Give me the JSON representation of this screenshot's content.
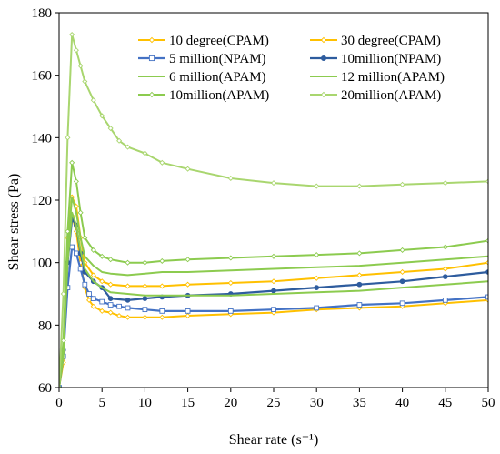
{
  "chart_data": {
    "type": "line",
    "xlabel": "Shear rate (s⁻¹)",
    "ylabel": "Shear stress (Pa)",
    "xlim": [
      0,
      50
    ],
    "ylim": [
      60,
      180
    ],
    "xticks": [
      "0",
      "5",
      "10",
      "15",
      "20",
      "25",
      "30",
      "35",
      "40",
      "45",
      "50"
    ],
    "yticks": [
      "60",
      "80",
      "100",
      "120",
      "140",
      "160",
      "180"
    ],
    "grid": false,
    "legend_position": "top-right",
    "series": [
      {
        "name": "10 degree(CPAM)",
        "color": "#FFC000",
        "marker": "diamond",
        "x": [
          0,
          0.5,
          1,
          1.5,
          2,
          2.5,
          3,
          3.5,
          4,
          5,
          6,
          7,
          8,
          10,
          12,
          15,
          20,
          25,
          30,
          35,
          40,
          45,
          50
        ],
        "y": [
          60,
          68,
          100,
          115,
          110,
          100,
          92,
          88,
          86,
          84.5,
          84,
          83,
          82.5,
          82.5,
          82.5,
          83,
          83.5,
          84,
          85,
          85.5,
          86,
          87,
          88
        ]
      },
      {
        "name": "30 degree(CPAM)",
        "color": "#FFC000",
        "marker": "diamond",
        "x": [
          0,
          0.5,
          1,
          1.5,
          2,
          2.5,
          3,
          4,
          5,
          6,
          8,
          10,
          12,
          15,
          20,
          25,
          30,
          35,
          40,
          45,
          50
        ],
        "y": [
          60,
          70,
          108,
          121,
          118,
          108,
          100,
          96,
          94,
          93,
          92.5,
          92.5,
          92.5,
          93,
          93.5,
          94,
          95,
          96,
          97,
          98,
          100
        ]
      },
      {
        "name": "5 million(NPAM)",
        "color": "#4472C4",
        "marker": "square",
        "x": [
          0,
          0.5,
          1,
          1.5,
          2,
          2.5,
          3,
          3.5,
          4,
          5,
          6,
          7,
          8,
          10,
          12,
          15,
          20,
          25,
          30,
          35,
          40,
          45,
          50
        ],
        "y": [
          60,
          70,
          92,
          105,
          103,
          98,
          93,
          90,
          88.5,
          87.5,
          86.5,
          86,
          85.5,
          85,
          84.5,
          84.5,
          84.5,
          85,
          85.5,
          86.5,
          87,
          88,
          89
        ]
      },
      {
        "name": "10million(NPAM)",
        "color": "#2E5C9E",
        "marker": "circle",
        "x": [
          0,
          0.5,
          1,
          1.5,
          2,
          2.5,
          3,
          4,
          5,
          6,
          8,
          10,
          12,
          15,
          20,
          25,
          30,
          35,
          40,
          45,
          50
        ],
        "y": [
          60,
          72,
          100,
          114,
          112,
          103,
          97,
          94,
          92,
          88.5,
          88,
          88.5,
          89,
          89.5,
          90,
          91,
          92,
          93,
          94,
          95.5,
          97
        ]
      },
      {
        "name": "6 million(APAM)",
        "color": "#8CCB4F",
        "marker": "none",
        "x": [
          0,
          0.5,
          1,
          1.5,
          2,
          2.5,
          3,
          4,
          5,
          6,
          8,
          10,
          12,
          15,
          20,
          25,
          30,
          35,
          40,
          45,
          50
        ],
        "y": [
          60,
          70,
          100,
          116,
          112,
          104,
          98,
          94,
          92,
          90.5,
          90,
          89.5,
          89.5,
          89.5,
          89.5,
          90,
          90.5,
          91,
          92,
          93,
          94
        ]
      },
      {
        "name": "12 million(APAM)",
        "color": "#8CCB4F",
        "marker": "none",
        "x": [
          0,
          0.5,
          1,
          1.5,
          2,
          2.5,
          3,
          4,
          5,
          6,
          8,
          10,
          12,
          15,
          20,
          25,
          30,
          35,
          40,
          45,
          50
        ],
        "y": [
          60,
          72,
          104,
          121,
          116,
          108,
          102,
          99,
          97,
          96.5,
          96,
          96.5,
          97,
          97,
          97.5,
          98,
          98.5,
          99,
          100,
          101,
          102
        ]
      },
      {
        "name": "10million(APAM)",
        "color": "#8CCB4F",
        "marker": "diamond",
        "x": [
          0,
          0.5,
          1,
          1.5,
          2,
          2.5,
          3,
          4,
          5,
          6,
          8,
          10,
          12,
          15,
          20,
          25,
          30,
          35,
          40,
          45,
          50
        ],
        "y": [
          60,
          75,
          110,
          132,
          126,
          116,
          108,
          104,
          102,
          101,
          100,
          100,
          100.5,
          101,
          101.5,
          102,
          102.5,
          103,
          104,
          105,
          107
        ]
      },
      {
        "name": "20million(APAM)",
        "color": "#A9D66F",
        "marker": "diamond",
        "x": [
          0,
          0.5,
          1,
          1.5,
          2,
          2.5,
          3,
          4,
          5,
          6,
          7,
          8,
          10,
          12,
          15,
          20,
          25,
          30,
          35,
          40,
          45,
          50
        ],
        "y": [
          60,
          90,
          140,
          173,
          168,
          163,
          158,
          152,
          147,
          143,
          139,
          137,
          135,
          132,
          130,
          127,
          125.5,
          124.5,
          124.5,
          125,
          125.5,
          126
        ]
      }
    ]
  }
}
